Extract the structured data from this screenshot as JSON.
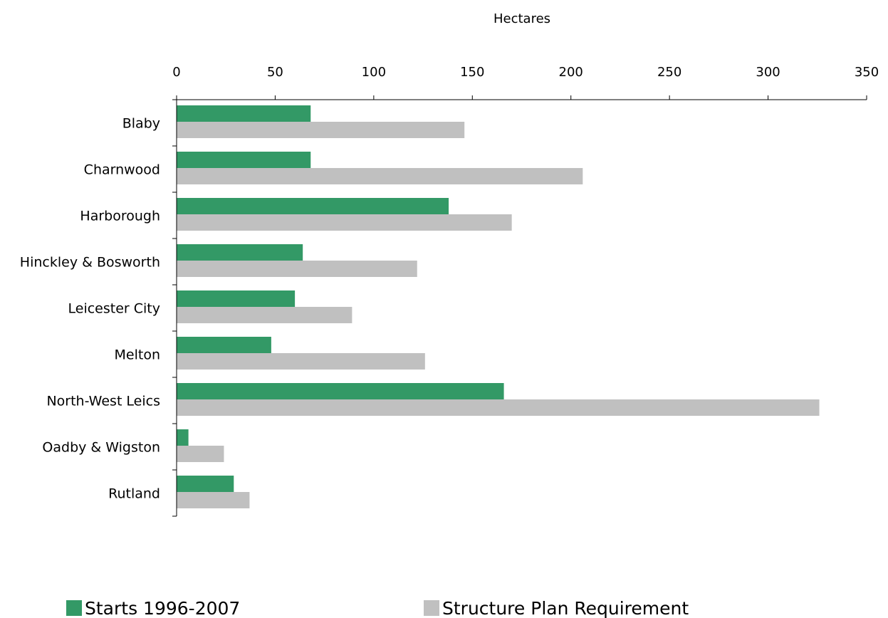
{
  "chart_data": {
    "type": "bar",
    "orientation": "horizontal",
    "title": "",
    "xlabel": "Hectares",
    "ylabel": "",
    "xlim": [
      0,
      350
    ],
    "x_ticks": [
      0,
      50,
      100,
      150,
      200,
      250,
      300,
      350
    ],
    "x_axis_position": "top",
    "grid": false,
    "legend_position": "bottom",
    "categories": [
      "Blaby",
      "Charnwood",
      "Harborough",
      "Hinckley & Bosworth",
      "Leicester City",
      "Melton",
      "North-West Leics",
      "Oadby & Wigston",
      "Rutland"
    ],
    "series": [
      {
        "name": "Starts 1996-2007",
        "color": "#339966",
        "values": [
          68,
          68,
          138,
          64,
          60,
          48,
          166,
          6,
          29
        ]
      },
      {
        "name": "Structure Plan Requirement",
        "color": "#c0c0c0",
        "values": [
          146,
          206,
          170,
          122,
          89,
          126,
          326,
          24,
          37
        ]
      }
    ]
  }
}
